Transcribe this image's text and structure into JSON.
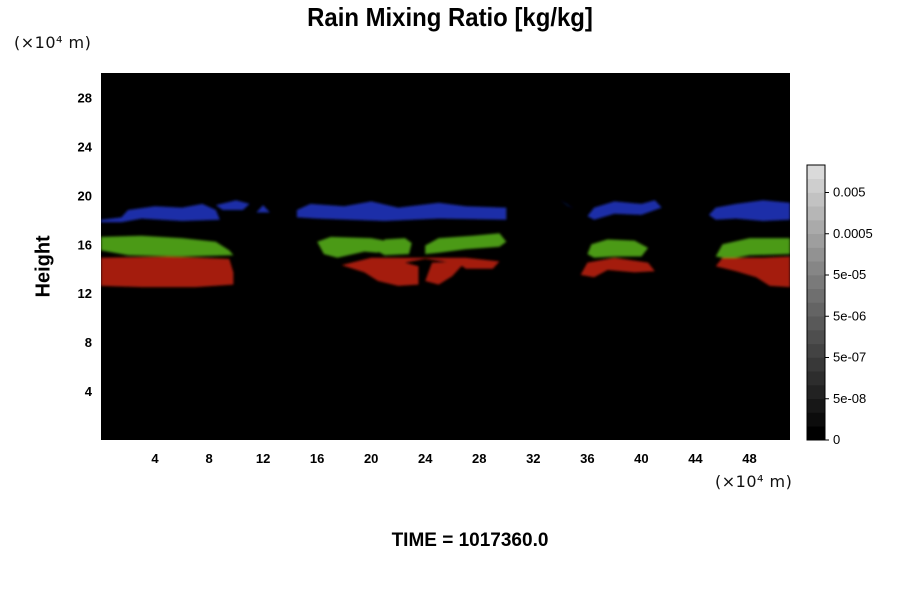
{
  "chart_data": {
    "type": "heatmap",
    "title": "Rain Mixing Ratio [kg/kg]",
    "ylabel": "Height",
    "x_unit": "(×10⁴ m)",
    "y_unit": "(×10⁴ m)",
    "footer": "TIME = 1017360.0",
    "xlim": [
      0,
      51
    ],
    "ylim": [
      0,
      30
    ],
    "x_ticks": [
      "4",
      "8",
      "12",
      "16",
      "20",
      "24",
      "28",
      "32",
      "36",
      "40",
      "44",
      "48"
    ],
    "y_ticks": [
      "4",
      "8",
      "12",
      "16",
      "20",
      "24",
      "28"
    ],
    "background_color": "#000000",
    "colorbar": {
      "levels": 20,
      "labels": [
        "0",
        "5e-08",
        "5e-07",
        "5e-06",
        "5e-05",
        "0.0005",
        "0.005"
      ],
      "colors": [
        "#000000",
        "#0c0c0c",
        "#171717",
        "#222222",
        "#2d2d2d",
        "#383838",
        "#434343",
        "#4e4e4e",
        "#595959",
        "#646464",
        "#6f6f6f",
        "#7a7a7a",
        "#868686",
        "#929292",
        "#9e9e9e",
        "#aaaaaa",
        "#b6b6b6",
        "#c2c2c2",
        "#cecece",
        "#dadada"
      ]
    },
    "regions": [
      {
        "color": "#1e2ea8",
        "shapes": [
          [
            [
              0,
              18.0
            ],
            [
              1.5,
              18.2
            ],
            [
              2,
              18.8
            ],
            [
              4,
              19.1
            ],
            [
              6,
              19.0
            ],
            [
              7.5,
              19.3
            ],
            [
              8.5,
              18.8
            ],
            [
              8.8,
              18.0
            ],
            [
              6,
              17.9
            ],
            [
              3,
              18.1
            ],
            [
              1.5,
              17.8
            ],
            [
              0,
              17.8
            ]
          ],
          [
            [
              8.5,
              19.2
            ],
            [
              10,
              19.6
            ],
            [
              11,
              19.3
            ],
            [
              10.5,
              18.8
            ],
            [
              9,
              18.8
            ]
          ],
          [
            [
              11.5,
              18.6
            ],
            [
              12,
              19.2
            ],
            [
              12.5,
              18.6
            ]
          ],
          [
            [
              14.5,
              18.2
            ],
            [
              14.5,
              18.8
            ],
            [
              15.5,
              19.3
            ],
            [
              18,
              19.1
            ],
            [
              20,
              19.5
            ],
            [
              22,
              19.0
            ],
            [
              25,
              19.4
            ],
            [
              27,
              19.1
            ],
            [
              30,
              19.0
            ],
            [
              30,
              18.0
            ],
            [
              25,
              18.1
            ],
            [
              21,
              17.9
            ],
            [
              16,
              18.1
            ]
          ],
          [
            [
              34,
              19.6
            ],
            [
              34.5,
              19.2
            ],
            [
              35,
              18.9
            ]
          ],
          [
            [
              36,
              18.3
            ],
            [
              36.5,
              19.0
            ],
            [
              38,
              19.5
            ],
            [
              40,
              19.3
            ],
            [
              41,
              19.6
            ],
            [
              41.5,
              19.0
            ],
            [
              40,
              18.4
            ],
            [
              38,
              18.5
            ],
            [
              36.5,
              18.0
            ]
          ],
          [
            [
              45,
              18.4
            ],
            [
              45.5,
              19.0
            ],
            [
              47,
              19.3
            ],
            [
              49,
              19.6
            ],
            [
              51,
              19.4
            ],
            [
              51,
              18.0
            ],
            [
              49,
              17.9
            ],
            [
              47,
              18.1
            ],
            [
              45.5,
              18.0
            ]
          ]
        ]
      },
      {
        "color": "#4c9a18",
        "shapes": [
          [
            [
              0,
              15.5
            ],
            [
              0,
              16.6
            ],
            [
              3,
              16.7
            ],
            [
              6,
              16.5
            ],
            [
              8.5,
              16.2
            ],
            [
              9.5,
              15.5
            ],
            [
              9.8,
              15.1
            ],
            [
              6,
              15.0
            ],
            [
              2,
              15.1
            ]
          ],
          [
            [
              16,
              16.2
            ],
            [
              16.5,
              15.2
            ],
            [
              17.5,
              14.9
            ],
            [
              19.5,
              15.4
            ],
            [
              20.5,
              15.3
            ],
            [
              21,
              16.3
            ],
            [
              20,
              16.5
            ],
            [
              17,
              16.6
            ]
          ],
          [
            [
              20.5,
              15.4
            ],
            [
              21,
              16.4
            ],
            [
              22.5,
              16.5
            ],
            [
              23,
              16.1
            ],
            [
              22.8,
              15.2
            ],
            [
              21,
              15.1
            ]
          ],
          [
            [
              24,
              15.2
            ],
            [
              24,
              15.9
            ],
            [
              25,
              16.5
            ],
            [
              27.5,
              16.7
            ],
            [
              29.5,
              16.9
            ],
            [
              30,
              16.2
            ],
            [
              29.5,
              15.8
            ],
            [
              27,
              15.6
            ],
            [
              25,
              15.3
            ]
          ],
          [
            [
              36,
              15.2
            ],
            [
              36.3,
              16.0
            ],
            [
              37.5,
              16.4
            ],
            [
              39.5,
              16.3
            ],
            [
              40.5,
              15.7
            ],
            [
              40,
              15.0
            ],
            [
              38,
              15.0
            ],
            [
              36.5,
              14.9
            ]
          ],
          [
            [
              45.5,
              15.0
            ],
            [
              46,
              16.0
            ],
            [
              48,
              16.5
            ],
            [
              51,
              16.5
            ],
            [
              51,
              15.2
            ],
            [
              48,
              15.1
            ],
            [
              46.5,
              14.8
            ]
          ]
        ]
      },
      {
        "color": "#a41a10",
        "shapes": [
          [
            [
              0,
              12.6
            ],
            [
              0,
              14.9
            ],
            [
              5,
              15.0
            ],
            [
              9.5,
              14.8
            ],
            [
              9.8,
              13.7
            ],
            [
              9.8,
              12.7
            ],
            [
              7,
              12.5
            ],
            [
              3,
              12.5
            ]
          ],
          [
            [
              17.8,
              14.3
            ],
            [
              19.5,
              13.7
            ],
            [
              20.5,
              13.0
            ],
            [
              22,
              12.6
            ],
            [
              23.5,
              12.7
            ],
            [
              23.5,
              14.2
            ],
            [
              22.5,
              14.5
            ],
            [
              24,
              14.8
            ],
            [
              26.5,
              14.4
            ],
            [
              27,
              14.0
            ],
            [
              29,
              14.0
            ],
            [
              29.5,
              14.6
            ],
            [
              27,
              14.9
            ],
            [
              20,
              14.9
            ]
          ],
          [
            [
              24,
              13.0
            ],
            [
              24.5,
              14.5
            ],
            [
              27,
              14.6
            ],
            [
              26,
              13.4
            ],
            [
              25,
              12.7
            ]
          ],
          [
            [
              35.5,
              13.5
            ],
            [
              36,
              14.5
            ],
            [
              38,
              14.9
            ],
            [
              40.5,
              14.5
            ],
            [
              41,
              13.8
            ],
            [
              39.5,
              13.7
            ],
            [
              37.5,
              13.9
            ],
            [
              36.5,
              13.3
            ]
          ],
          [
            [
              45.5,
              14.2
            ],
            [
              46,
              14.9
            ],
            [
              49,
              14.9
            ],
            [
              51,
              15.0
            ],
            [
              51,
              12.5
            ],
            [
              49.5,
              12.6
            ],
            [
              48.5,
              13.3
            ],
            [
              47,
              13.8
            ]
          ]
        ]
      }
    ]
  }
}
